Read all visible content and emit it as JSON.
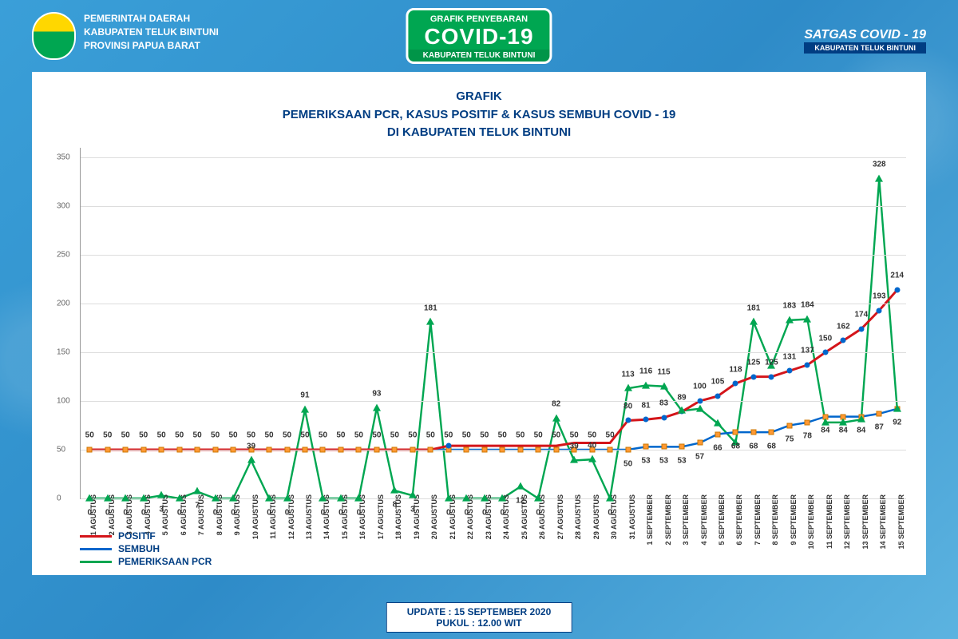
{
  "header": {
    "gov_line1": "PEMERINTAH DAERAH",
    "gov_line2": "KABUPATEN TELUK BINTUNI",
    "gov_line3": "PROVINSI PAPUA BARAT",
    "title_small": "GRAFIK PENYEBARAN",
    "title_big": "COVID-19",
    "title_sub": "KABUPATEN TELUK BINTUNI",
    "satgas1": "SATGAS COVID - 19",
    "satgas2": "KABUPATEN TELUK BINTUNI"
  },
  "chart": {
    "title_line1": "GRAFIK",
    "title_line2": "PEMERIKSAAN PCR, KASUS POSITIF & KASUS SEMBUH COVID - 19",
    "title_line3": "DI KABUPATEN TELUK BINTUNI",
    "ylim": [
      0,
      360
    ],
    "yticks": [
      0,
      50,
      100,
      150,
      200,
      250,
      300,
      350
    ],
    "dates": [
      "1 AGUSTUS",
      "2 AGUSTUS",
      "3 AGUSTUS",
      "4 AGUSTUS",
      "5 AGUSTUS",
      "6 AGUSTUS",
      "7 AGUSTUS",
      "8 AGUSTUS",
      "9 AGUSTUS",
      "10 AGUSTUS",
      "11 AGUSTUS",
      "12 AGUSTUS",
      "13 AGUSTUS",
      "14 AGUSTUS",
      "15 AGUSTUS",
      "16 AGUSTUS",
      "17 AGUSTUS",
      "18 AGUSTUS",
      "19 AGUSTUS",
      "20 AGUSTUS",
      "21 AGUSTUS",
      "22 AGUSTUS",
      "23 AGUSTUS",
      "24 AGUSTUS",
      "25 AGUSTUS",
      "26 AGUSTUS",
      "27 AGUSTUS",
      "28 AGUSTUS",
      "29 AGUSTUS",
      "30 AGUSTUS",
      "31 AGUSTUS",
      "1 SEPTEMBER",
      "2 SEPTEMBER",
      "3 SEPTEMBER",
      "4 SEPTEMBER",
      "5 SEPTEMBER",
      "6 SEPTEMBER",
      "7 SEPTEMBER",
      "8 SEPTEMBER",
      "9 SEPTEMBER",
      "10 SEPTEMBER",
      "11 SEPTEMBER",
      "12 SEPTEMBER",
      "13 SEPTEMBER",
      "14 SEPTEMBER",
      "15 SEPTEMBER"
    ],
    "series": {
      "positif": {
        "color": "#d4151a",
        "values": [
          50,
          50,
          50,
          50,
          50,
          50,
          50,
          50,
          50,
          50,
          50,
          50,
          50,
          50,
          50,
          50,
          50,
          50,
          50,
          50,
          54,
          54,
          54,
          54,
          54,
          54,
          54,
          57,
          57,
          57,
          80,
          81,
          83,
          89,
          100,
          105,
          118,
          125,
          125,
          131,
          137,
          150,
          162,
          174,
          193,
          214
        ]
      },
      "sembuh": {
        "color": "#0066cc",
        "values": [
          50,
          50,
          50,
          50,
          50,
          50,
          50,
          50,
          50,
          50,
          50,
          50,
          50,
          50,
          50,
          50,
          50,
          50,
          50,
          50,
          50,
          50,
          50,
          50,
          50,
          50,
          50,
          50,
          50,
          50,
          50,
          53,
          53,
          53,
          57,
          66,
          68,
          68,
          68,
          75,
          78,
          84,
          84,
          84,
          87,
          92
        ]
      },
      "pcr": {
        "color": "#00a651",
        "values": [
          0,
          0,
          0,
          0,
          3,
          0,
          7,
          0,
          0,
          39,
          0,
          0,
          91,
          0,
          0,
          0,
          93,
          8,
          3,
          181,
          0,
          0,
          0,
          0,
          12,
          0,
          82,
          39,
          40,
          0,
          113,
          116,
          115,
          90,
          92,
          77,
          57,
          181,
          136,
          183,
          184,
          78,
          78,
          81,
          328,
          92
        ]
      }
    },
    "legend": [
      {
        "label": "POSITIF",
        "color": "#d4151a"
      },
      {
        "label": "SEMBUH",
        "color": "#0066cc"
      },
      {
        "label": "PEMERIKSAAN PCR",
        "color": "#00a651"
      }
    ]
  },
  "footer": {
    "line1": "UPDATE : 15 SEPTEMBER 2020",
    "line2": "PUKUL : 12.00 WIT"
  }
}
